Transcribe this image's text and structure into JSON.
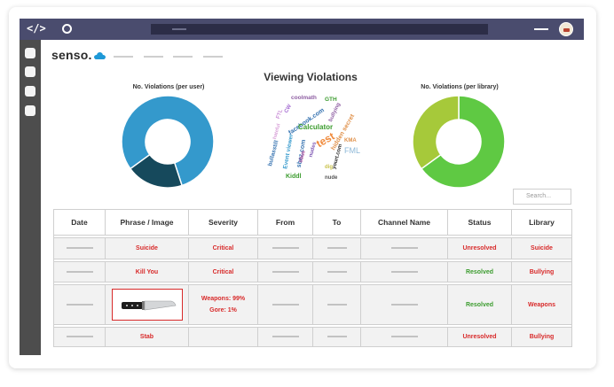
{
  "browser": {
    "code_icon": "</>",
    "nav_icon": "circle-icon",
    "avatar_icon": "avatar-icon"
  },
  "sidebar": {
    "buttons": [
      "sidebar-btn-1",
      "sidebar-btn-2",
      "sidebar-btn-3",
      "sidebar-btn-4"
    ]
  },
  "app": {
    "logo_text": "senso."
  },
  "dashboard": {
    "title": "Viewing Violations",
    "user_chart_label": "No. Violations (per user)",
    "library_chart_label": "No. Violations (per library)",
    "search_placeholder": "Search..."
  },
  "chart_data": [
    {
      "type": "pie",
      "title": "No. Violations (per user)",
      "values": [
        80,
        20
      ],
      "colors": [
        "#3499cc",
        "#16495c"
      ]
    },
    {
      "type": "pie",
      "title": "No. Violations (per library)",
      "values": [
        65,
        35
      ],
      "colors": [
        "#5fc943",
        "#a6c93a"
      ]
    }
  ],
  "wordcloud": [
    "coolmath",
    "GTH",
    "FTL",
    "CW",
    "facebook.com",
    "bullying",
    "hateful",
    "Calculator",
    "test",
    "nudes",
    "hidden secret",
    "KMA",
    "bullasstill",
    "Event viewer",
    "sbez.com",
    "sbus",
    "FML",
    "yourt.com",
    "dig",
    "Kiddl",
    "nude"
  ],
  "table": {
    "columns": [
      "Date",
      "Phrase / Image",
      "Severity",
      "From",
      "To",
      "Channel Name",
      "Status",
      "Library"
    ],
    "rows": [
      {
        "phrase": "Suicide",
        "severity": "Critical",
        "status": "Unresolved",
        "library": "Suicide"
      },
      {
        "phrase": "Kill You",
        "severity": "Critical",
        "status": "Resolved",
        "library": "Bullying"
      },
      {
        "phrase": "",
        "image_icon": "knife-icon",
        "severity_line1": "Weapons: 99%",
        "severity_line2": "Gore: 1%",
        "status": "Resolved",
        "library": "Weapons"
      },
      {
        "phrase": "Stab",
        "severity": "",
        "status": "Unresolved",
        "library": "Bullying"
      }
    ]
  },
  "colors": {
    "critical": "#d82a2a",
    "resolved": "#3c9c2f",
    "topbar": "#4a4c6e"
  }
}
